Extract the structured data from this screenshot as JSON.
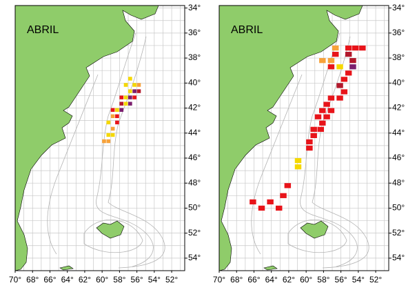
{
  "map": {
    "xlim": [
      70,
      50.5
    ],
    "ylim": [
      33.8,
      55
    ],
    "xticks": [
      {
        "value": 70,
        "label": "70°"
      },
      {
        "value": 68,
        "label": "68°"
      },
      {
        "value": 66,
        "label": "66°"
      },
      {
        "value": 64,
        "label": "64°"
      },
      {
        "value": 62,
        "label": "62°"
      },
      {
        "value": 60,
        "label": "60°"
      },
      {
        "value": 58,
        "label": "58°"
      },
      {
        "value": 56,
        "label": "56°"
      },
      {
        "value": 54,
        "label": "54°"
      },
      {
        "value": 52,
        "label": "52°"
      }
    ],
    "yticks": [
      {
        "value": 34,
        "label": "34°"
      },
      {
        "value": 36,
        "label": "36°"
      },
      {
        "value": 38,
        "label": "38°"
      },
      {
        "value": 40,
        "label": "40°"
      },
      {
        "value": 42,
        "label": "42°"
      },
      {
        "value": 44,
        "label": "44°"
      },
      {
        "value": 46,
        "label": "46°"
      },
      {
        "value": 48,
        "label": "48°"
      },
      {
        "value": 50,
        "label": "50°"
      },
      {
        "value": 52,
        "label": "52°"
      },
      {
        "value": 54,
        "label": "54°"
      }
    ],
    "panels": [
      {
        "title": "ABRIL",
        "cell_size": [
          0.45,
          0.3
        ],
        "cells": [
          {
            "lon": 56.0,
            "lat": 40.0,
            "color": "#f7a23a"
          },
          {
            "lon": 56.5,
            "lat": 40.0,
            "color": "#f5d800"
          },
          {
            "lon": 56.0,
            "lat": 40.5,
            "color": "#b2182b"
          },
          {
            "lon": 56.5,
            "lat": 40.5,
            "color": "#7b1f6e"
          },
          {
            "lon": 57.0,
            "lat": 40.5,
            "color": "#f5d800"
          },
          {
            "lon": 57.0,
            "lat": 39.5,
            "color": "#f5d800"
          },
          {
            "lon": 57.5,
            "lat": 40.0,
            "color": "#f5d800"
          },
          {
            "lon": 56.5,
            "lat": 41.0,
            "color": "#e8141a"
          },
          {
            "lon": 57.0,
            "lat": 41.0,
            "color": "#7b1f6e"
          },
          {
            "lon": 57.5,
            "lat": 41.0,
            "color": "#f5d800"
          },
          {
            "lon": 57.5,
            "lat": 41.5,
            "color": "#f5d800"
          },
          {
            "lon": 58.0,
            "lat": 41.0,
            "color": "#e8141a"
          },
          {
            "lon": 57.0,
            "lat": 41.5,
            "color": "#7b1f6e"
          },
          {
            "lon": 58.0,
            "lat": 41.5,
            "color": "#b2182b"
          },
          {
            "lon": 58.5,
            "lat": 42.0,
            "color": "#f5d800"
          },
          {
            "lon": 58.0,
            "lat": 42.0,
            "color": "#7b1f6e"
          },
          {
            "lon": 58.5,
            "lat": 42.5,
            "color": "#e8141a"
          },
          {
            "lon": 59.0,
            "lat": 42.0,
            "color": "#e8141a"
          },
          {
            "lon": 59.0,
            "lat": 42.5,
            "color": "#f7a23a"
          },
          {
            "lon": 59.5,
            "lat": 43.0,
            "color": "#f5d800"
          },
          {
            "lon": 58.5,
            "lat": 43.0,
            "color": "#e8141a"
          },
          {
            "lon": 59.0,
            "lat": 43.5,
            "color": "#f7a23a"
          },
          {
            "lon": 59.5,
            "lat": 44.0,
            "color": "#f5d800"
          },
          {
            "lon": 59.0,
            "lat": 44.0,
            "color": "#f5d800"
          },
          {
            "lon": 59.5,
            "lat": 44.5,
            "color": "#f7a23a"
          },
          {
            "lon": 60.0,
            "lat": 44.5,
            "color": "#f7a23a"
          }
        ]
      },
      {
        "title": "ABRIL",
        "cell_size": [
          0.75,
          0.4
        ],
        "cells": [
          {
            "lon": 55.5,
            "lat": 37.0,
            "color": "#e8141a"
          },
          {
            "lon": 54.7,
            "lat": 37.0,
            "color": "#e8141a"
          },
          {
            "lon": 53.9,
            "lat": 37.0,
            "color": "#e8141a"
          },
          {
            "lon": 57.0,
            "lat": 37.0,
            "color": "#f7a23a"
          },
          {
            "lon": 55.5,
            "lat": 37.5,
            "color": "#b2182b"
          },
          {
            "lon": 57.0,
            "lat": 37.5,
            "color": "#e8141a"
          },
          {
            "lon": 58.5,
            "lat": 38.0,
            "color": "#f7a23a"
          },
          {
            "lon": 55.0,
            "lat": 38.0,
            "color": "#b2182b"
          },
          {
            "lon": 57.5,
            "lat": 38.0,
            "color": "#f7a23a"
          },
          {
            "lon": 56.5,
            "lat": 38.5,
            "color": "#f5d800"
          },
          {
            "lon": 57.5,
            "lat": 38.5,
            "color": "#e8141a"
          },
          {
            "lon": 55.0,
            "lat": 38.5,
            "color": "#7b1f6e"
          },
          {
            "lon": 55.5,
            "lat": 39.0,
            "color": "#e8141a"
          },
          {
            "lon": 56.0,
            "lat": 39.5,
            "color": "#e8141a"
          },
          {
            "lon": 56.5,
            "lat": 40.0,
            "color": "#b2182b"
          },
          {
            "lon": 56.0,
            "lat": 40.5,
            "color": "#e8141a"
          },
          {
            "lon": 56.5,
            "lat": 41.0,
            "color": "#e8141a"
          },
          {
            "lon": 57.5,
            "lat": 41.0,
            "color": "#e8141a"
          },
          {
            "lon": 58.0,
            "lat": 41.5,
            "color": "#e8141a"
          },
          {
            "lon": 57.5,
            "lat": 42.0,
            "color": "#e8141a"
          },
          {
            "lon": 58.5,
            "lat": 42.0,
            "color": "#e8141a"
          },
          {
            "lon": 58.0,
            "lat": 42.5,
            "color": "#e8141a"
          },
          {
            "lon": 59.0,
            "lat": 42.5,
            "color": "#e8141a"
          },
          {
            "lon": 58.5,
            "lat": 43.0,
            "color": "#e8141a"
          },
          {
            "lon": 59.5,
            "lat": 43.5,
            "color": "#e8141a"
          },
          {
            "lon": 58.7,
            "lat": 43.5,
            "color": "#e8141a"
          },
          {
            "lon": 59.5,
            "lat": 44.0,
            "color": "#e8141a"
          },
          {
            "lon": 60.0,
            "lat": 44.5,
            "color": "#e8141a"
          },
          {
            "lon": 60.0,
            "lat": 45.0,
            "color": "#e8141a"
          },
          {
            "lon": 61.3,
            "lat": 46.0,
            "color": "#f5d800"
          },
          {
            "lon": 61.3,
            "lat": 46.5,
            "color": "#f5d800"
          },
          {
            "lon": 62.5,
            "lat": 48.0,
            "color": "#e8141a"
          },
          {
            "lon": 63.0,
            "lat": 48.8,
            "color": "#e8141a"
          },
          {
            "lon": 64.5,
            "lat": 49.3,
            "color": "#e8141a"
          },
          {
            "lon": 66.5,
            "lat": 49.3,
            "color": "#e8141a"
          },
          {
            "lon": 65.5,
            "lat": 49.8,
            "color": "#e8141a"
          },
          {
            "lon": 63.5,
            "lat": 49.8,
            "color": "#e8141a"
          }
        ]
      }
    ]
  }
}
